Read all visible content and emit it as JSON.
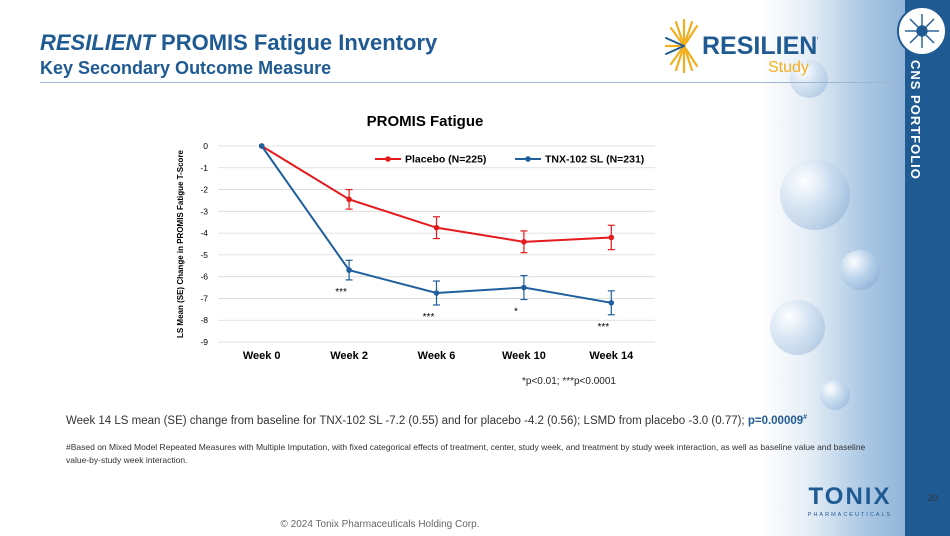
{
  "slide": {
    "title_italic": "RESILIENT",
    "title_rest": " PROMIS Fatigue Inventory",
    "subtitle": "Key Secondary Outcome Measure",
    "side_label": "CNS PORTFOLIO",
    "page_number": "20",
    "copyright": "© 2024 Tonix Pharmaceuticals Holding Corp.",
    "summary_text": "Week 14 LS mean (SE) change from baseline for TNX-102 SL -7.2 (0.55) and for placebo -4.2 (0.56); LSMD from placebo -3.0 (0.77); ",
    "summary_pvalue": "p=0.00009",
    "summary_mark": "#",
    "footnote": "#Based on Mixed Model Repeated Measures with Multiple Imputation, with fixed categorical effects of treatment, center, study week, and treatment by study week interaction, as well as baseline value and baseline value-by-study week interaction.",
    "sig_note": "*p<0.01; ***p<0.0001"
  },
  "logos": {
    "resilient_main": "RESILIENT",
    "resilient_sub": "Study",
    "tonix_main": "TONIX",
    "tonix_sub": "PHARMACEUTICALS"
  },
  "colors": {
    "brand_blue": "#1f5a93",
    "placebo": "#e41a1c",
    "tnx": "#1f5f9e",
    "logo_gold": "#f2b01e"
  },
  "chart_data": {
    "type": "line",
    "title": "PROMIS Fatigue",
    "ylabel": "LS Mean (SE) Change in PROMIS Fatigue T-Score",
    "xlabel": "",
    "categories": [
      "Week 0",
      "Week 2",
      "Week 6",
      "Week 10",
      "Week 14"
    ],
    "ylim": [
      -9,
      0
    ],
    "yticks": [
      "0",
      "-1",
      "-2",
      "-3",
      "-4",
      "-5",
      "-6",
      "-7",
      "-8",
      "-9"
    ],
    "grid": true,
    "legend": "top-right",
    "series": [
      {
        "name": "Placebo (N=225)",
        "color": "#e41a1c",
        "values": [
          0,
          -2.45,
          -3.75,
          -4.4,
          -4.2
        ],
        "se": [
          0,
          0.45,
          0.5,
          0.5,
          0.56
        ]
      },
      {
        "name": "TNX-102 SL (N=231)",
        "color": "#1f5f9e",
        "values": [
          0,
          -5.7,
          -6.75,
          -6.5,
          -7.2
        ],
        "se": [
          0,
          0.45,
          0.55,
          0.55,
          0.55
        ]
      }
    ],
    "annotations": [
      {
        "category": "Week 2",
        "text": "***"
      },
      {
        "category": "Week 6",
        "text": "***"
      },
      {
        "category": "Week 10",
        "text": "*"
      },
      {
        "category": "Week 14",
        "text": "***"
      }
    ]
  }
}
